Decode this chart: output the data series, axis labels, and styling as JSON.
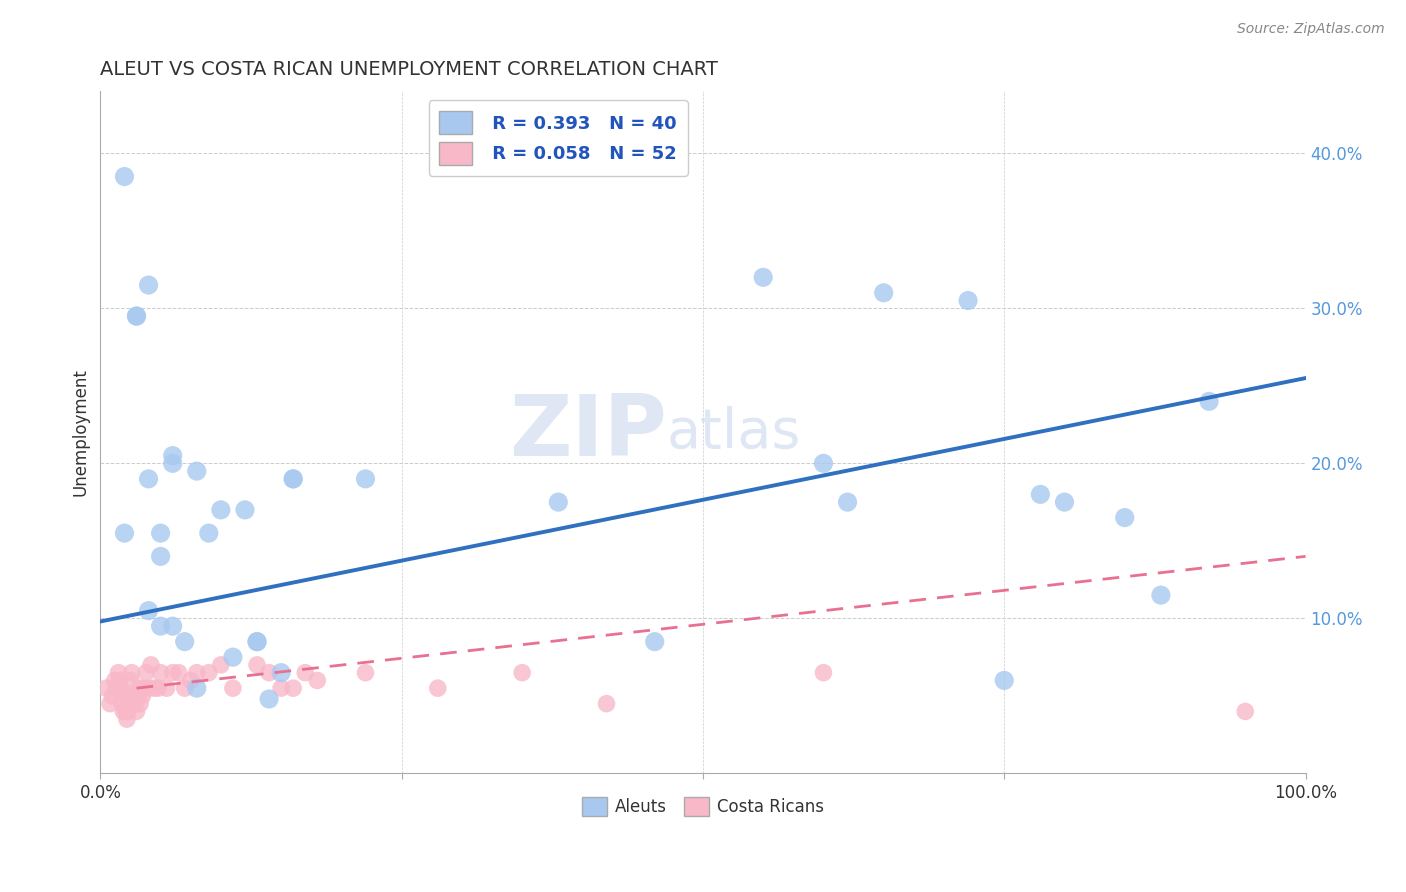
{
  "title": "ALEUT VS COSTA RICAN UNEMPLOYMENT CORRELATION CHART",
  "source": "Source: ZipAtlas.com",
  "ylabel": "Unemployment",
  "xlim": [
    0,
    1.0
  ],
  "ylim": [
    0,
    0.44
  ],
  "legend_r_aleut": "R = 0.393",
  "legend_n_aleut": "N = 40",
  "legend_r_costa": "R = 0.058",
  "legend_n_costa": "N = 52",
  "aleut_color": "#A8C8F0",
  "costa_color": "#F8B8C8",
  "aleut_line_color": "#3070C0",
  "costa_line_color": "#E87090",
  "watermark_zip": "ZIP",
  "watermark_atlas": "atlas",
  "background_color": "#FFFFFF",
  "grid_color": "#CCCCCC",
  "aleut_x": [
    0.02,
    0.04,
    0.46,
    0.04,
    0.06,
    0.05,
    0.09,
    0.13,
    0.06,
    0.08,
    0.12,
    0.05,
    0.05,
    0.1,
    0.14,
    0.08,
    0.04,
    0.03,
    0.38,
    0.55,
    0.6,
    0.65,
    0.72,
    0.75,
    0.85,
    0.03,
    0.06,
    0.16,
    0.22,
    0.62,
    0.78,
    0.8,
    0.88,
    0.92,
    0.02,
    0.11,
    0.15,
    0.16,
    0.13,
    0.07
  ],
  "aleut_y": [
    0.385,
    0.315,
    0.085,
    0.19,
    0.2,
    0.155,
    0.155,
    0.085,
    0.095,
    0.195,
    0.17,
    0.14,
    0.095,
    0.17,
    0.048,
    0.055,
    0.105,
    0.295,
    0.175,
    0.32,
    0.2,
    0.31,
    0.305,
    0.06,
    0.165,
    0.295,
    0.205,
    0.19,
    0.19,
    0.175,
    0.18,
    0.175,
    0.115,
    0.24,
    0.155,
    0.075,
    0.065,
    0.19,
    0.085,
    0.085
  ],
  "costa_x": [
    0.005,
    0.008,
    0.01,
    0.012,
    0.013,
    0.015,
    0.016,
    0.017,
    0.018,
    0.019,
    0.02,
    0.021,
    0.022,
    0.023,
    0.024,
    0.025,
    0.026,
    0.027,
    0.028,
    0.03,
    0.031,
    0.032,
    0.033,
    0.035,
    0.036,
    0.038,
    0.04,
    0.042,
    0.045,
    0.048,
    0.05,
    0.055,
    0.06,
    0.065,
    0.07,
    0.075,
    0.08,
    0.09,
    0.1,
    0.11,
    0.13,
    0.14,
    0.15,
    0.16,
    0.17,
    0.18,
    0.22,
    0.28,
    0.35,
    0.42,
    0.6,
    0.95
  ],
  "costa_y": [
    0.055,
    0.045,
    0.05,
    0.06,
    0.055,
    0.065,
    0.06,
    0.055,
    0.045,
    0.04,
    0.05,
    0.04,
    0.035,
    0.04,
    0.045,
    0.06,
    0.065,
    0.05,
    0.045,
    0.04,
    0.05,
    0.055,
    0.045,
    0.05,
    0.055,
    0.065,
    0.055,
    0.07,
    0.055,
    0.055,
    0.065,
    0.055,
    0.065,
    0.065,
    0.055,
    0.06,
    0.065,
    0.065,
    0.07,
    0.055,
    0.07,
    0.065,
    0.055,
    0.055,
    0.065,
    0.06,
    0.065,
    0.055,
    0.065,
    0.045,
    0.065,
    0.04
  ],
  "aleut_trend_x": [
    0.0,
    1.0
  ],
  "aleut_trend_y": [
    0.098,
    0.255
  ],
  "costa_trend_x": [
    0.03,
    1.0
  ],
  "costa_trend_y": [
    0.055,
    0.14
  ]
}
